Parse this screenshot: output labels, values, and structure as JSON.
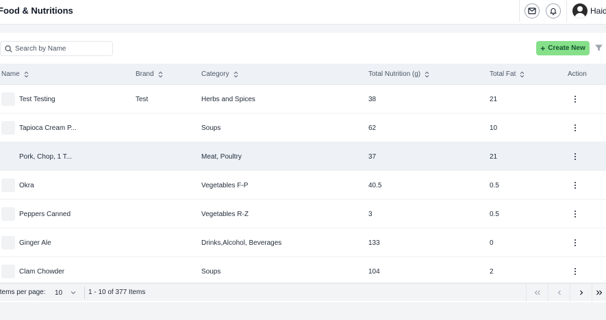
{
  "header": {
    "title": "Food & Nutritions",
    "user_name": "Haid"
  },
  "toolbar": {
    "search_placeholder": "Search by Name",
    "create_label": "Create New"
  },
  "table": {
    "columns": [
      "Name",
      "Brand",
      "Category",
      "Total Nutrition (g)",
      "Total Fat",
      "Action"
    ],
    "rows": [
      {
        "name": "Test Testing",
        "brand": "Test",
        "category": "Herbs and Spices",
        "nutrition": "38",
        "fat": "21"
      },
      {
        "name": "Tapioca Cream P...",
        "brand": "",
        "category": "Soups",
        "nutrition": "62",
        "fat": "10"
      },
      {
        "name": "Pork, Chop, 1 T...",
        "brand": "",
        "category": "Meat, Poultry",
        "nutrition": "37",
        "fat": "21"
      },
      {
        "name": "Okra",
        "brand": "",
        "category": "Vegetables F-P",
        "nutrition": "40.5",
        "fat": "0.5"
      },
      {
        "name": "Peppers Canned",
        "brand": "",
        "category": "Vegetables R-Z",
        "nutrition": "3",
        "fat": "0.5"
      },
      {
        "name": "Ginger Ale",
        "brand": "",
        "category": "Drinks,Alcohol, Beverages",
        "nutrition": "133",
        "fat": "0"
      },
      {
        "name": "Clam Chowder",
        "brand": "",
        "category": "Soups",
        "nutrition": "104",
        "fat": "2"
      }
    ]
  },
  "pagination": {
    "items_per_page_label": "Items per page:",
    "items_per_page_value": "10",
    "range_text": "1 - 10 of 377 Items"
  },
  "icons": {
    "mail": "mail-icon",
    "bell": "bell-icon",
    "avatar": "user-avatar",
    "search": "search-icon",
    "filter": "filter-icon",
    "sort": "sort-icon",
    "more": "more-vertical-icon"
  },
  "colors": {
    "accent": "#86e08a",
    "header_bg": "#eef2f7",
    "row_highlight": "#eef2f7"
  }
}
